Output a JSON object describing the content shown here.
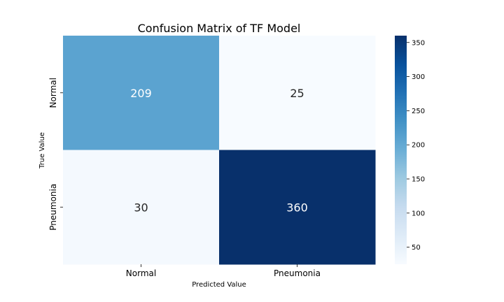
{
  "chart_data": {
    "type": "heatmap",
    "title": "Confusion Matrix of TF Model",
    "xlabel": "Predicted Value",
    "ylabel": "True Value",
    "x_categories": [
      "Normal",
      "Pneumonia"
    ],
    "y_categories": [
      "Normal",
      "Pneumonia"
    ],
    "values": [
      [
        209,
        25
      ],
      [
        30,
        360
      ]
    ],
    "colormap": "Blues",
    "colorbar": {
      "range": [
        25,
        360
      ],
      "ticks": [
        50,
        100,
        150,
        200,
        250,
        300,
        350
      ]
    },
    "grid": false
  }
}
